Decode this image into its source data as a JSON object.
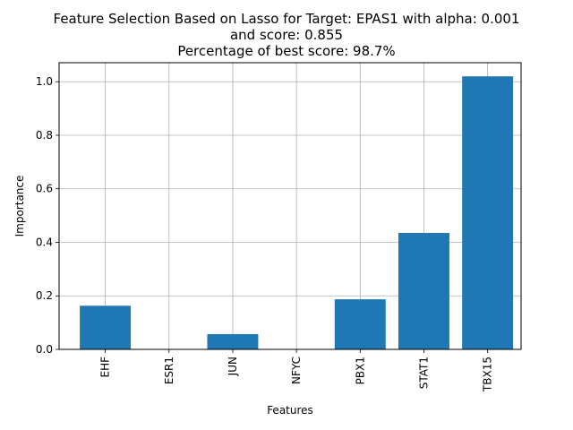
{
  "chart_data": {
    "type": "bar",
    "title_lines": [
      "Feature Selection Based on Lasso for Target: EPAS1 with alpha: 0.001",
      "and score: 0.855",
      "Percentage of best score: 98.7%"
    ],
    "xlabel": "Features",
    "ylabel": "Importance",
    "categories": [
      "EHF",
      "ESR1",
      "JUN",
      "NFYC",
      "PBX1",
      "STAT1",
      "TBX15"
    ],
    "values": [
      0.163,
      0.0,
      0.057,
      0.0,
      0.187,
      0.435,
      1.02
    ],
    "ylim": [
      0,
      1.071
    ],
    "yticks": [
      0.0,
      0.2,
      0.4,
      0.6,
      0.8,
      1.0
    ],
    "ytick_labels": [
      "0.0",
      "0.2",
      "0.4",
      "0.6",
      "0.8",
      "1.0"
    ],
    "grid": true,
    "bar_color": "#1f77b4",
    "grid_color": "#b0b0b0"
  }
}
